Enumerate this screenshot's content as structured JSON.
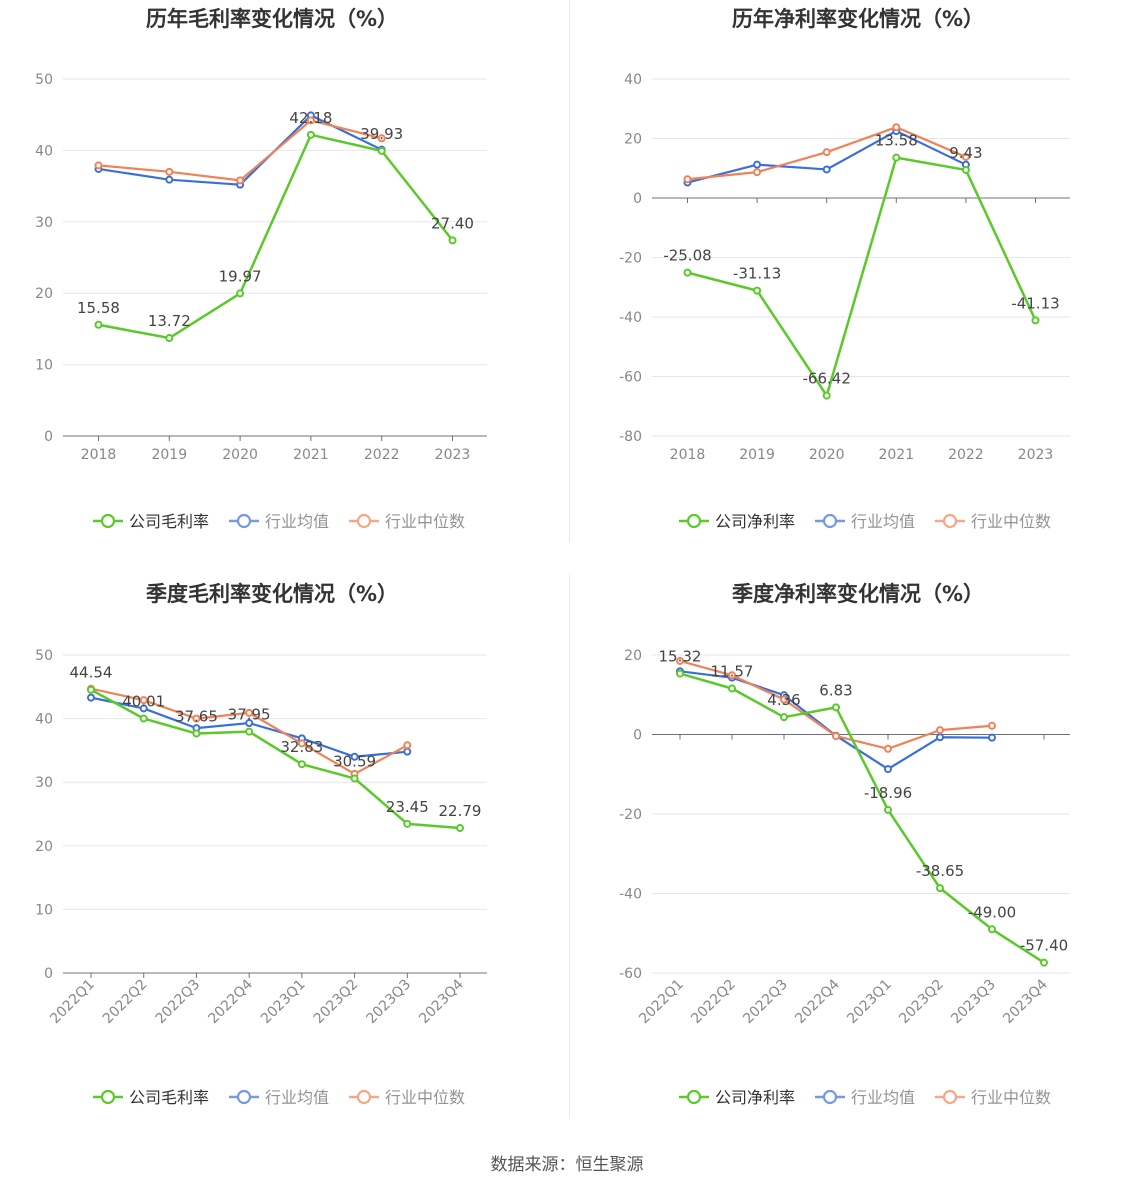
{
  "source_label": "数据来源：恒生聚源",
  "colors": {
    "company": "#5ac92a",
    "avg": "#3b6fd8",
    "median": "#f08258"
  },
  "chart_data": [
    {
      "id": "annual-gross",
      "type": "line",
      "title": "历年毛利率变化情况（%）",
      "categories": [
        "2018",
        "2019",
        "2020",
        "2021",
        "2022",
        "2023"
      ],
      "ylim": [
        0,
        50
      ],
      "yticks": [
        0,
        10,
        20,
        30,
        40,
        50
      ],
      "grid": true,
      "legend_position": "bottom",
      "series": [
        {
          "name": "公司毛利率",
          "role": "company",
          "values": [
            15.58,
            13.72,
            19.97,
            42.18,
            39.93,
            27.4
          ],
          "labels": [
            "15.58",
            "13.72",
            "19.97",
            "42.18",
            "39.93",
            "27.40"
          ]
        },
        {
          "name": "行业均值",
          "role": "avg",
          "values": [
            37.4,
            35.9,
            35.2,
            44.9,
            40.1,
            null
          ]
        },
        {
          "name": "行业中位数",
          "role": "median",
          "values": [
            37.9,
            37.0,
            35.8,
            44.2,
            41.7,
            null
          ]
        }
      ]
    },
    {
      "id": "annual-net",
      "type": "line",
      "title": "历年净利率变化情况（%）",
      "categories": [
        "2018",
        "2019",
        "2020",
        "2021",
        "2022",
        "2023"
      ],
      "ylim": [
        -80,
        40
      ],
      "yticks": [
        -80,
        -60,
        -40,
        -20,
        0,
        20,
        40
      ],
      "grid": true,
      "legend_position": "bottom",
      "series": [
        {
          "name": "公司净利率",
          "role": "company",
          "values": [
            -25.08,
            -31.13,
            -66.42,
            13.58,
            9.43,
            -41.13
          ],
          "labels": [
            "-25.08",
            "-31.13",
            "-66.42",
            "13.58",
            "9.43",
            "-41.13"
          ]
        },
        {
          "name": "行业均值",
          "role": "avg",
          "values": [
            5.2,
            11.2,
            9.6,
            22.5,
            11.2,
            null
          ]
        },
        {
          "name": "行业中位数",
          "role": "median",
          "values": [
            6.3,
            8.7,
            15.4,
            23.8,
            13.8,
            null
          ]
        }
      ]
    },
    {
      "id": "quarterly-gross",
      "type": "line",
      "title": "季度毛利率变化情况（%）",
      "categories": [
        "2022Q1",
        "2022Q2",
        "2022Q3",
        "2022Q4",
        "2023Q1",
        "2023Q2",
        "2023Q3",
        "2023Q4"
      ],
      "ylim": [
        0,
        50
      ],
      "yticks": [
        0,
        10,
        20,
        30,
        40,
        50
      ],
      "grid": true,
      "legend_position": "bottom",
      "series": [
        {
          "name": "公司毛利率",
          "role": "company",
          "values": [
            44.54,
            40.01,
            37.65,
            37.95,
            32.83,
            30.59,
            23.45,
            22.79
          ],
          "labels": [
            "44.54",
            "40.01",
            "37.65",
            "37.95",
            "32.83",
            "30.59",
            "23.45",
            "22.79"
          ]
        },
        {
          "name": "行业均值",
          "role": "avg",
          "values": [
            43.3,
            41.6,
            38.5,
            39.3,
            36.9,
            34.0,
            34.8,
            null
          ]
        },
        {
          "name": "行业中位数",
          "role": "median",
          "values": [
            44.7,
            42.9,
            40.0,
            40.9,
            36.1,
            31.3,
            35.8,
            null
          ]
        }
      ]
    },
    {
      "id": "quarterly-net",
      "type": "line",
      "title": "季度净利率变化情况（%）",
      "categories": [
        "2022Q1",
        "2022Q2",
        "2022Q3",
        "2022Q4",
        "2023Q1",
        "2023Q2",
        "2023Q3",
        "2023Q4"
      ],
      "ylim": [
        -60,
        20
      ],
      "yticks": [
        -60,
        -40,
        -20,
        0,
        20
      ],
      "grid": true,
      "legend_position": "bottom",
      "series": [
        {
          "name": "公司净利率",
          "role": "company",
          "values": [
            15.32,
            11.57,
            4.36,
            6.83,
            -18.96,
            -38.65,
            -49.0,
            -57.4
          ],
          "labels": [
            "15.32",
            "11.57",
            "4.36",
            "6.83",
            "-18.96",
            "-38.65",
            "-49.00",
            "-57.40"
          ]
        },
        {
          "name": "行业均值",
          "role": "avg",
          "values": [
            15.9,
            14.3,
            9.9,
            -0.3,
            -8.7,
            -0.7,
            -0.8,
            null
          ]
        },
        {
          "name": "行业中位数",
          "role": "median",
          "values": [
            18.5,
            14.9,
            8.8,
            -0.4,
            -3.6,
            1.1,
            2.2,
            null
          ]
        }
      ]
    }
  ]
}
